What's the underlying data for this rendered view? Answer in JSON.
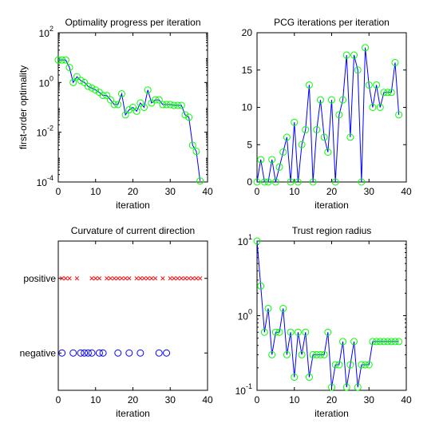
{
  "chart_data": [
    {
      "id": "p1",
      "type": "line",
      "title": "Optimality progress per iteration",
      "xlabel": "iteration",
      "ylabel": "first-order optimality",
      "xlim": [
        0,
        40
      ],
      "ylim": [
        0.0001,
        100
      ],
      "yscale": "log",
      "xticks": [
        0,
        10,
        20,
        30,
        40
      ],
      "ytick_bases": [
        "10",
        "10",
        "10",
        "10"
      ],
      "ytick_exps": [
        "-4",
        "-2",
        "0",
        "2"
      ],
      "ytick_values": [
        0.0001,
        0.01,
        1,
        100
      ],
      "line_color": "#0000ff",
      "marker_color": "#00ff00",
      "x": [
        0,
        1,
        2,
        3,
        4,
        5,
        6,
        7,
        8,
        9,
        10,
        11,
        12,
        13,
        14,
        15,
        16,
        17,
        18,
        19,
        20,
        21,
        22,
        23,
        24,
        25,
        26,
        27,
        28,
        29,
        30,
        31,
        32,
        33,
        34,
        35,
        36,
        37,
        38
      ],
      "y": [
        8,
        8,
        8,
        4,
        1,
        1.7,
        1.2,
        1,
        0.7,
        0.6,
        0.5,
        0.4,
        0.3,
        0.3,
        0.2,
        0.13,
        0.13,
        0.35,
        0.05,
        0.08,
        0.1,
        0.07,
        0.15,
        0.1,
        0.5,
        0.15,
        0.2,
        0.2,
        0.13,
        0.13,
        0.13,
        0.12,
        0.12,
        0.12,
        0.05,
        0.04,
        0.003,
        0.0017,
        0.00011
      ]
    },
    {
      "id": "p2",
      "type": "line",
      "title": "PCG iterations per iteration",
      "xlabel": "iteration",
      "ylabel": "",
      "xlim": [
        0,
        40
      ],
      "ylim": [
        0,
        20
      ],
      "xticks": [
        0,
        10,
        20,
        30,
        40
      ],
      "yticks": [
        0,
        5,
        10,
        15,
        20
      ],
      "line_color": "#0000ff",
      "marker_color": "#00ff00",
      "x": [
        0,
        1,
        2,
        3,
        4,
        5,
        6,
        7,
        8,
        9,
        10,
        11,
        12,
        13,
        14,
        15,
        16,
        17,
        18,
        19,
        20,
        21,
        22,
        23,
        24,
        25,
        26,
        27,
        28,
        29,
        30,
        31,
        32,
        33,
        34,
        35,
        36,
        37,
        38
      ],
      "y": [
        0,
        3,
        0,
        0,
        3,
        0,
        2,
        4,
        6,
        0,
        8,
        0,
        5,
        7,
        13,
        0,
        7,
        11,
        6,
        4,
        11,
        0,
        9,
        11,
        17,
        6,
        17,
        15,
        0,
        18,
        13,
        10,
        13,
        10,
        12,
        12,
        12,
        16,
        9
      ]
    },
    {
      "id": "p3",
      "type": "scatter",
      "title": "Curvature of current direction",
      "xlabel": "iteration",
      "ylabel": "",
      "xlim": [
        0,
        40
      ],
      "xticks": [
        0,
        10,
        20,
        30,
        40
      ],
      "categories": [
        "negative",
        "positive"
      ],
      "positive_color": "#ff0000",
      "negative_color": "#0000ff",
      "positive_x": [
        1,
        2,
        3,
        5,
        9,
        10,
        11,
        13,
        14,
        15,
        16,
        17,
        18,
        19,
        21,
        22,
        23,
        24,
        25,
        26,
        28,
        30,
        31,
        32,
        33,
        34,
        35,
        36,
        37,
        38
      ],
      "negative_x": [
        1,
        4,
        6,
        7,
        8,
        9,
        11,
        12,
        16,
        19,
        22,
        27,
        29
      ]
    },
    {
      "id": "p4",
      "type": "line",
      "title": "Trust region radius",
      "xlabel": "iteration",
      "ylabel": "",
      "xlim": [
        0,
        40
      ],
      "ylim": [
        0.1,
        10
      ],
      "yscale": "log",
      "xticks": [
        0,
        10,
        20,
        30,
        40
      ],
      "ytick_bases": [
        "10",
        "10",
        "10"
      ],
      "ytick_exps": [
        "-1",
        "0",
        "1"
      ],
      "ytick_values": [
        0.1,
        1,
        10
      ],
      "line_color": "#0000ff",
      "marker_color": "#00ff00",
      "x": [
        0,
        1,
        2,
        3,
        4,
        5,
        6,
        7,
        8,
        9,
        10,
        11,
        12,
        13,
        14,
        15,
        16,
        17,
        18,
        19,
        20,
        21,
        22,
        23,
        24,
        25,
        26,
        27,
        28,
        29,
        30,
        31,
        32,
        33,
        34,
        35,
        36,
        37,
        38
      ],
      "y": [
        10,
        2.5,
        0.6,
        1.25,
        0.3,
        0.6,
        0.6,
        1.25,
        0.3,
        0.6,
        0.15,
        0.6,
        0.3,
        0.6,
        0.15,
        0.3,
        0.3,
        0.3,
        0.3,
        0.6,
        0.11,
        0.22,
        0.22,
        0.45,
        0.11,
        0.22,
        0.45,
        0.11,
        0.22,
        0.22,
        0.22,
        0.45,
        0.45,
        0.45,
        0.45,
        0.45,
        0.45,
        0.45,
        0.45
      ]
    }
  ]
}
